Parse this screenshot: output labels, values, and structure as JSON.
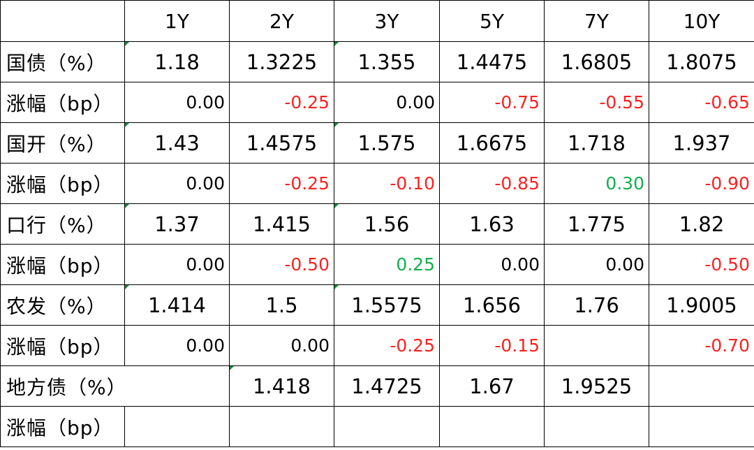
{
  "header": [
    "",
    "1Y",
    "2Y",
    "3Y",
    "5Y",
    "7Y",
    "10Y"
  ],
  "rows": [
    {
      "kind": "rate",
      "label": "国债（%）",
      "cells": [
        "1.18",
        "1.3225",
        "1.355",
        "1.4475",
        "1.6805",
        "1.8075"
      ]
    },
    {
      "kind": "change",
      "label": "涨幅（bp）",
      "cells": [
        "0.00",
        "-0.25",
        "0.00",
        "-0.75",
        "-0.55",
        "-0.65"
      ],
      "tones": [
        "zero",
        "neg",
        "zero",
        "neg",
        "neg",
        "neg"
      ]
    },
    {
      "kind": "rate",
      "label": "国开（%）",
      "cells": [
        "1.43",
        "1.4575",
        "1.575",
        "1.6675",
        "1.718",
        "1.937"
      ]
    },
    {
      "kind": "change",
      "label": "涨幅（bp）",
      "cells": [
        "0.00",
        "-0.25",
        "-0.10",
        "-0.85",
        "0.30",
        "-0.90"
      ],
      "tones": [
        "zero",
        "neg",
        "neg",
        "neg",
        "pos",
        "neg"
      ]
    },
    {
      "kind": "rate",
      "label": "口行（%）",
      "cells": [
        "1.37",
        "1.415",
        "1.56",
        "1.63",
        "1.775",
        "1.82"
      ]
    },
    {
      "kind": "change",
      "label": "涨幅（bp）",
      "cells": [
        "0.00",
        "-0.50",
        "0.25",
        "0.00",
        "0.00",
        "-0.50"
      ],
      "tones": [
        "zero",
        "neg",
        "pos",
        "zero",
        "zero",
        "neg"
      ]
    },
    {
      "kind": "rate",
      "label": "农发（%）",
      "cells": [
        "1.414",
        "1.5",
        "1.5575",
        "1.656",
        "1.76",
        "1.9005"
      ]
    },
    {
      "kind": "change",
      "label": "涨幅（bp）",
      "cells": [
        "0.00",
        "0.00",
        "-0.25",
        "-0.15",
        "",
        "-0.70"
      ],
      "tones": [
        "zero",
        "zero",
        "neg",
        "neg",
        "zero",
        "neg"
      ]
    },
    {
      "kind": "rate",
      "label": "地方债（%）",
      "label_span": 2,
      "cells": [
        "1.418",
        "1.4725",
        "1.67",
        "1.9525"
      ]
    },
    {
      "kind": "change",
      "label": "涨幅（bp）",
      "cells": [
        "",
        "",
        "",
        "",
        "",
        ""
      ],
      "tones": [
        "zero",
        "zero",
        "zero",
        "zero",
        "zero",
        "zero"
      ]
    }
  ],
  "colors": {
    "negative": "#ff1f1f",
    "positive": "#11b04a",
    "marker": "#1b8a3a"
  }
}
